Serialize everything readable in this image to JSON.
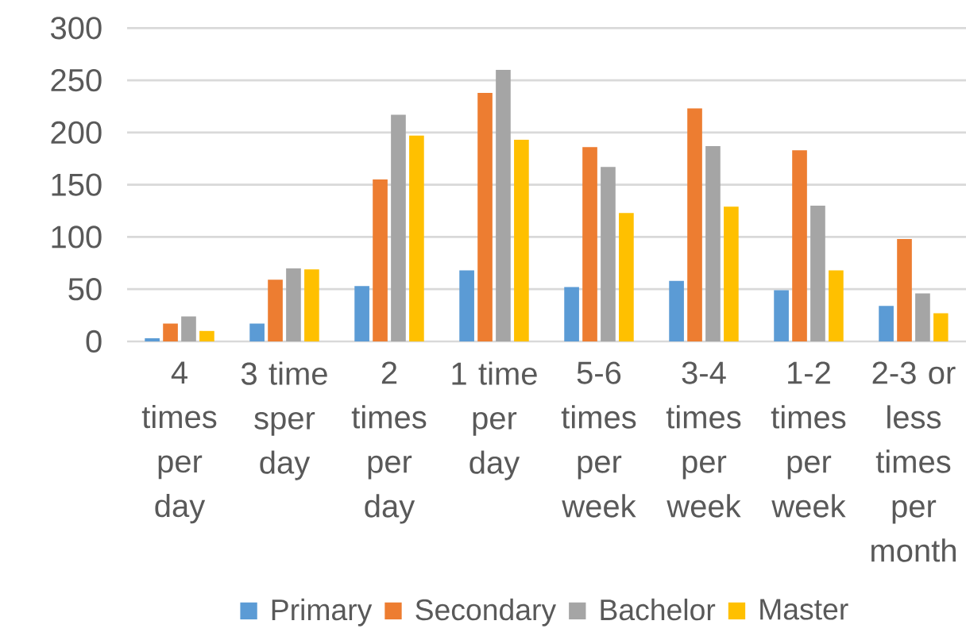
{
  "chart_data": {
    "type": "bar",
    "categories": [
      "4 times per day",
      "3 time sper day",
      "2 times per day",
      "1 time per day",
      "5-6 times per week",
      "3-4 times per week",
      "1-2 times per week",
      "2-3 or less times per month"
    ],
    "series": [
      {
        "name": "Primary",
        "color": "#5b9bd5",
        "values": [
          3,
          17,
          53,
          68,
          52,
          58,
          49,
          34
        ]
      },
      {
        "name": "Secondary",
        "color": "#ed7d31",
        "values": [
          17,
          59,
          155,
          238,
          186,
          223,
          183,
          98
        ]
      },
      {
        "name": "Bachelor",
        "color": "#a5a5a5",
        "values": [
          24,
          70,
          217,
          260,
          167,
          187,
          130,
          46
        ]
      },
      {
        "name": "Master",
        "color": "#ffc000",
        "values": [
          10,
          69,
          197,
          193,
          123,
          129,
          68,
          27
        ]
      }
    ],
    "ylim": [
      0,
      300
    ],
    "yticks": [
      0,
      50,
      100,
      150,
      200,
      250,
      300
    ],
    "grid": "y",
    "legend": "bottom"
  }
}
